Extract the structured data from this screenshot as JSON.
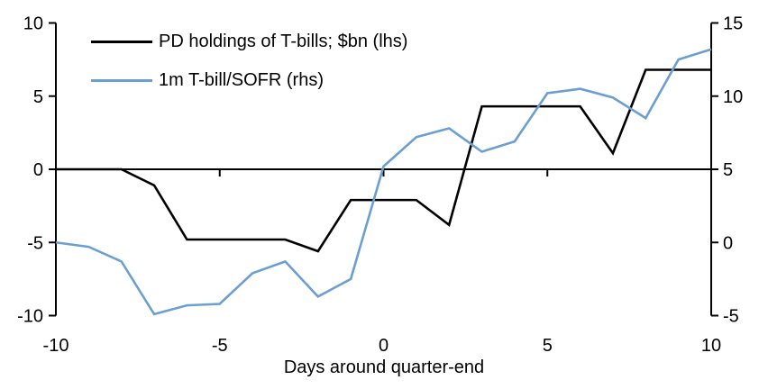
{
  "chart_data": {
    "type": "line",
    "title": "",
    "xlabel": "Days around quarter-end",
    "x": [
      -10,
      -9,
      -8,
      -7,
      -6,
      -5,
      -4,
      -3,
      -2,
      -1,
      0,
      1,
      2,
      3,
      4,
      5,
      6,
      7,
      8,
      9,
      10
    ],
    "x_ticks": [
      -10,
      -5,
      0,
      5,
      10
    ],
    "grid": false,
    "legend_position": "top-left",
    "axes": {
      "left": {
        "min": -10,
        "max": 10,
        "ticks": [
          10,
          5,
          0,
          -5,
          -10
        ]
      },
      "right": {
        "min": -5,
        "max": 15,
        "ticks": [
          15,
          10,
          5,
          0,
          -5
        ]
      }
    },
    "series": [
      {
        "name": "PD holdings of T-bills; $bn (lhs)",
        "axis": "left",
        "color": "#000000",
        "values": [
          0,
          0,
          0,
          -1.1,
          -4.8,
          -4.8,
          -4.8,
          -4.8,
          -5.6,
          -2.1,
          -2.1,
          -2.1,
          -3.8,
          4.3,
          4.3,
          4.3,
          4.3,
          1.1,
          6.8,
          6.8,
          6.8
        ]
      },
      {
        "name": "1m T-bill/SOFR (rhs)",
        "axis": "right",
        "color": "#6B9ED1",
        "values": [
          0,
          -0.3,
          -1.3,
          -4.9,
          -4.3,
          -4.2,
          -2.1,
          -1.3,
          -3.7,
          -2.5,
          5.2,
          7.2,
          7.8,
          6.2,
          6.9,
          10.2,
          10.5,
          9.9,
          8.5,
          12.5,
          13.2
        ]
      }
    ],
    "colors": {
      "axis": "#000000",
      "background": "#ffffff"
    }
  }
}
